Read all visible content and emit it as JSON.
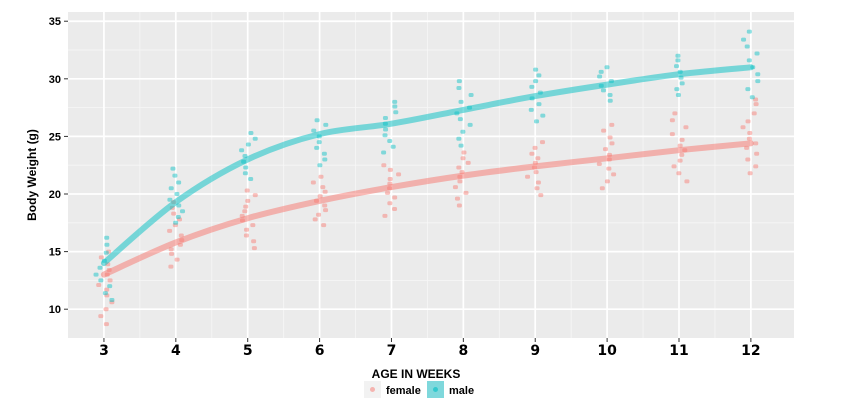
{
  "chart_data": {
    "type": "scatter",
    "xlabel": "AGE IN WEEKS",
    "ylabel": "Body Weight (g)",
    "categories": [
      "3",
      "4",
      "5",
      "6",
      "7",
      "8",
      "9",
      "10",
      "11",
      "12"
    ],
    "xlim": [
      2.5,
      12.6
    ],
    "ylim": [
      7.5,
      35.8
    ],
    "yticks": [
      10,
      15,
      20,
      25,
      30,
      35
    ],
    "ytick_labels": [
      "10",
      "15",
      "20",
      "25",
      "30",
      "35"
    ],
    "grid": true,
    "legend": {
      "title": "",
      "position": "bottom"
    },
    "series": [
      {
        "name": "female",
        "color": "#F8766D",
        "fit": [
          13.0,
          15.8,
          17.9,
          19.4,
          20.6,
          21.6,
          22.4,
          23.1,
          23.8,
          24.4
        ],
        "points": [
          [
            3,
            8.7
          ],
          [
            3,
            9.4
          ],
          [
            3,
            10.0
          ],
          [
            3,
            10.6
          ],
          [
            3,
            11.2
          ],
          [
            3,
            11.7
          ],
          [
            3,
            12.1
          ],
          [
            3,
            12.5
          ],
          [
            3,
            13.0
          ],
          [
            3,
            13.4
          ],
          [
            3,
            13.9
          ],
          [
            3,
            14.5
          ],
          [
            3,
            15.0
          ],
          [
            4,
            13.7
          ],
          [
            4,
            14.3
          ],
          [
            4,
            14.8
          ],
          [
            4,
            15.2
          ],
          [
            4,
            15.6
          ],
          [
            4,
            16.0
          ],
          [
            4,
            16.4
          ],
          [
            4,
            16.8
          ],
          [
            4,
            17.3
          ],
          [
            4,
            17.8
          ],
          [
            4,
            18.3
          ],
          [
            4,
            18.8
          ],
          [
            4,
            19.3
          ],
          [
            5,
            15.3
          ],
          [
            5,
            15.9
          ],
          [
            5,
            16.4
          ],
          [
            5,
            16.9
          ],
          [
            5,
            17.3
          ],
          [
            5,
            17.7
          ],
          [
            5,
            18.1
          ],
          [
            5,
            18.5
          ],
          [
            5,
            18.9
          ],
          [
            5,
            19.4
          ],
          [
            5,
            19.9
          ],
          [
            5,
            20.3
          ],
          [
            6,
            17.3
          ],
          [
            6,
            17.8
          ],
          [
            6,
            18.2
          ],
          [
            6,
            18.6
          ],
          [
            6,
            19.0
          ],
          [
            6,
            19.4
          ],
          [
            6,
            19.8
          ],
          [
            6,
            20.2
          ],
          [
            6,
            20.6
          ],
          [
            6,
            21.0
          ],
          [
            6,
            21.5
          ],
          [
            7,
            18.1
          ],
          [
            7,
            18.7
          ],
          [
            7,
            19.2
          ],
          [
            7,
            19.7
          ],
          [
            7,
            20.1
          ],
          [
            7,
            20.5
          ],
          [
            7,
            20.9
          ],
          [
            7,
            21.3
          ],
          [
            7,
            21.7
          ],
          [
            7,
            22.1
          ],
          [
            7,
            22.5
          ],
          [
            8,
            19.0
          ],
          [
            8,
            19.6
          ],
          [
            8,
            20.1
          ],
          [
            8,
            20.6
          ],
          [
            8,
            21.1
          ],
          [
            8,
            21.5
          ],
          [
            8,
            21.9
          ],
          [
            8,
            22.3
          ],
          [
            8,
            22.7
          ],
          [
            8,
            23.1
          ],
          [
            8,
            23.6
          ],
          [
            9,
            19.9
          ],
          [
            9,
            20.5
          ],
          [
            9,
            21.0
          ],
          [
            9,
            21.5
          ],
          [
            9,
            21.9
          ],
          [
            9,
            22.3
          ],
          [
            9,
            22.7
          ],
          [
            9,
            23.1
          ],
          [
            9,
            23.5
          ],
          [
            9,
            24.0
          ],
          [
            9,
            24.5
          ],
          [
            10,
            20.5
          ],
          [
            10,
            21.1
          ],
          [
            10,
            21.7
          ],
          [
            10,
            22.2
          ],
          [
            10,
            22.6
          ],
          [
            10,
            23.0
          ],
          [
            10,
            23.4
          ],
          [
            10,
            23.9
          ],
          [
            10,
            24.4
          ],
          [
            10,
            24.9
          ],
          [
            10,
            25.5
          ],
          [
            10,
            26.0
          ],
          [
            11,
            21.1
          ],
          [
            11,
            21.8
          ],
          [
            11,
            22.4
          ],
          [
            11,
            22.9
          ],
          [
            11,
            23.4
          ],
          [
            11,
            23.8
          ],
          [
            11,
            24.2
          ],
          [
            11,
            24.7
          ],
          [
            11,
            25.2
          ],
          [
            11,
            25.8
          ],
          [
            11,
            26.4
          ],
          [
            11,
            27.0
          ],
          [
            12,
            21.8
          ],
          [
            12,
            22.4
          ],
          [
            12,
            23.0
          ],
          [
            12,
            23.5
          ],
          [
            12,
            24.0
          ],
          [
            12,
            24.4
          ],
          [
            12,
            24.8
          ],
          [
            12,
            25.3
          ],
          [
            12,
            25.8
          ],
          [
            12,
            26.3
          ],
          [
            12,
            27.0
          ],
          [
            12,
            27.8
          ],
          [
            12,
            28.2
          ]
        ]
      },
      {
        "name": "male",
        "color": "#00BFC4",
        "fit": [
          14.0,
          19.3,
          23.0,
          25.2,
          26.1,
          27.3,
          28.5,
          29.5,
          30.4,
          31.0
        ],
        "points": [
          [
            3,
            10.8
          ],
          [
            3,
            11.4
          ],
          [
            3,
            12.0
          ],
          [
            3,
            12.5
          ],
          [
            3,
            13.0
          ],
          [
            3,
            13.6
          ],
          [
            3,
            14.2
          ],
          [
            3,
            14.9
          ],
          [
            3,
            15.6
          ],
          [
            3,
            16.2
          ],
          [
            4,
            17.5
          ],
          [
            4,
            18.0
          ],
          [
            4,
            18.5
          ],
          [
            4,
            19.0
          ],
          [
            4,
            19.5
          ],
          [
            4,
            20.0
          ],
          [
            4,
            20.5
          ],
          [
            4,
            21.0
          ],
          [
            4,
            21.6
          ],
          [
            4,
            22.2
          ],
          [
            5,
            21.3
          ],
          [
            5,
            21.8
          ],
          [
            5,
            22.3
          ],
          [
            5,
            22.8
          ],
          [
            5,
            23.3
          ],
          [
            5,
            23.8
          ],
          [
            5,
            24.3
          ],
          [
            5,
            24.8
          ],
          [
            5,
            25.3
          ],
          [
            6,
            22.5
          ],
          [
            6,
            23.0
          ],
          [
            6,
            23.5
          ],
          [
            6,
            24.0
          ],
          [
            6,
            24.5
          ],
          [
            6,
            25.0
          ],
          [
            6,
            25.5
          ],
          [
            6,
            26.0
          ],
          [
            6,
            26.4
          ],
          [
            7,
            23.6
          ],
          [
            7,
            24.1
          ],
          [
            7,
            24.6
          ],
          [
            7,
            25.1
          ],
          [
            7,
            25.6
          ],
          [
            7,
            26.1
          ],
          [
            7,
            26.6
          ],
          [
            7,
            27.1
          ],
          [
            7,
            27.6
          ],
          [
            7,
            28.0
          ],
          [
            8,
            24.2
          ],
          [
            8,
            24.8
          ],
          [
            8,
            25.4
          ],
          [
            8,
            26.0
          ],
          [
            8,
            26.5
          ],
          [
            8,
            27.0
          ],
          [
            8,
            27.5
          ],
          [
            8,
            28.0
          ],
          [
            8,
            28.6
          ],
          [
            8,
            29.2
          ],
          [
            8,
            29.8
          ],
          [
            9,
            26.3
          ],
          [
            9,
            26.8
          ],
          [
            9,
            27.3
          ],
          [
            9,
            27.8
          ],
          [
            9,
            28.3
          ],
          [
            9,
            28.8
          ],
          [
            9,
            29.3
          ],
          [
            9,
            29.8
          ],
          [
            9,
            30.3
          ],
          [
            9,
            30.8
          ],
          [
            10,
            28.1
          ],
          [
            10,
            28.6
          ],
          [
            10,
            29.0
          ],
          [
            10,
            29.4
          ],
          [
            10,
            29.8
          ],
          [
            10,
            30.2
          ],
          [
            10,
            30.6
          ],
          [
            10,
            31.0
          ],
          [
            11,
            28.6
          ],
          [
            11,
            29.1
          ],
          [
            11,
            29.6
          ],
          [
            11,
            30.1
          ],
          [
            11,
            30.6
          ],
          [
            11,
            31.1
          ],
          [
            11,
            31.6
          ],
          [
            11,
            32.0
          ],
          [
            12,
            28.4
          ],
          [
            12,
            29.1
          ],
          [
            12,
            29.8
          ],
          [
            12,
            30.4
          ],
          [
            12,
            31.0
          ],
          [
            12,
            31.6
          ],
          [
            12,
            32.2
          ],
          [
            12,
            32.8
          ],
          [
            12,
            33.4
          ],
          [
            12,
            34.1
          ]
        ]
      }
    ]
  }
}
